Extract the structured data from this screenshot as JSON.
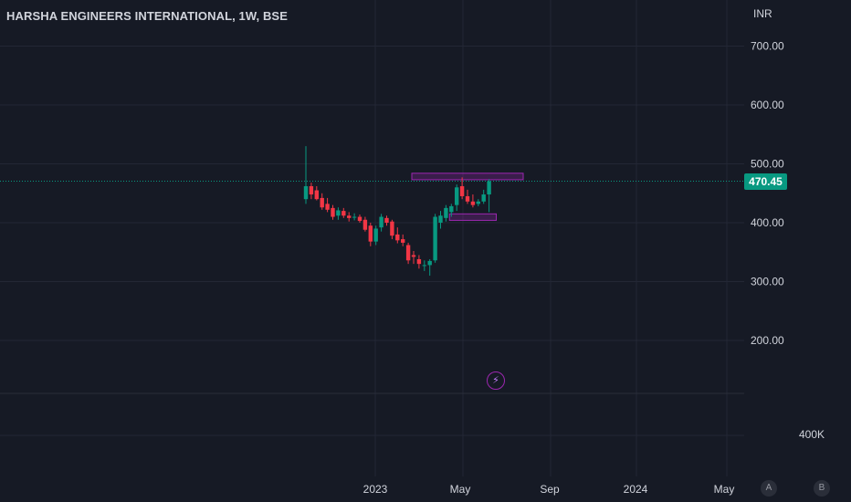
{
  "header": {
    "title": "HARSHA ENGINEERS INTERNATIONAL, 1W, BSE",
    "currency": "INR"
  },
  "price_axis": {
    "ticks": [
      "700.00",
      "600.00",
      "500.00",
      "400.00",
      "300.00",
      "200.00"
    ],
    "last_price_label": "470.45"
  },
  "volume_axis": {
    "label": "400K"
  },
  "time_axis": {
    "ticks": [
      "2023",
      "May",
      "Sep",
      "2024",
      "May"
    ]
  },
  "controls": {
    "auto_label": "A",
    "bold_label": "B"
  },
  "colors": {
    "background": "#161a25",
    "up": "#089981",
    "down": "#f23645",
    "zone": "#9c27b0",
    "grid": "#232735"
  },
  "chart_data": {
    "type": "candlestick",
    "title": "HARSHA ENGINEERS INTERNATIONAL, 1W, BSE",
    "ylabel": "INR",
    "ylim": [
      100,
      760
    ],
    "last_price": 470.45,
    "grid": true,
    "x_ticks": [
      "2023",
      "May",
      "Sep",
      "2024",
      "May"
    ],
    "candles": [
      {
        "o": 440,
        "h": 530,
        "l": 432,
        "c": 462
      },
      {
        "o": 462,
        "h": 468,
        "l": 440,
        "c": 448
      },
      {
        "o": 455,
        "h": 462,
        "l": 438,
        "c": 440
      },
      {
        "o": 442,
        "h": 450,
        "l": 422,
        "c": 426
      },
      {
        "o": 432,
        "h": 442,
        "l": 418,
        "c": 422
      },
      {
        "o": 425,
        "h": 430,
        "l": 405,
        "c": 410
      },
      {
        "o": 412,
        "h": 426,
        "l": 405,
        "c": 421
      },
      {
        "o": 420,
        "h": 425,
        "l": 408,
        "c": 412
      },
      {
        "o": 412,
        "h": 418,
        "l": 402,
        "c": 408
      },
      {
        "o": 410,
        "h": 416,
        "l": 404,
        "c": 410
      },
      {
        "o": 410,
        "h": 414,
        "l": 400,
        "c": 403
      },
      {
        "o": 405,
        "h": 410,
        "l": 385,
        "c": 388
      },
      {
        "o": 395,
        "h": 400,
        "l": 360,
        "c": 368
      },
      {
        "o": 368,
        "h": 395,
        "l": 362,
        "c": 390
      },
      {
        "o": 392,
        "h": 415,
        "l": 385,
        "c": 410
      },
      {
        "o": 408,
        "h": 412,
        "l": 395,
        "c": 400
      },
      {
        "o": 402,
        "h": 405,
        "l": 372,
        "c": 378
      },
      {
        "o": 380,
        "h": 392,
        "l": 365,
        "c": 370
      },
      {
        "o": 372,
        "h": 380,
        "l": 360,
        "c": 366
      },
      {
        "o": 362,
        "h": 366,
        "l": 330,
        "c": 336
      },
      {
        "o": 345,
        "h": 352,
        "l": 330,
        "c": 342
      },
      {
        "o": 338,
        "h": 345,
        "l": 322,
        "c": 330
      },
      {
        "o": 328,
        "h": 336,
        "l": 318,
        "c": 328
      },
      {
        "o": 328,
        "h": 338,
        "l": 310,
        "c": 335
      },
      {
        "o": 336,
        "h": 415,
        "l": 332,
        "c": 410
      },
      {
        "o": 400,
        "h": 420,
        "l": 390,
        "c": 412
      },
      {
        "o": 408,
        "h": 430,
        "l": 402,
        "c": 425
      },
      {
        "o": 418,
        "h": 432,
        "l": 410,
        "c": 428
      },
      {
        "o": 430,
        "h": 465,
        "l": 420,
        "c": 460
      },
      {
        "o": 462,
        "h": 477,
        "l": 440,
        "c": 445
      },
      {
        "o": 445,
        "h": 456,
        "l": 432,
        "c": 436
      },
      {
        "o": 436,
        "h": 448,
        "l": 426,
        "c": 430
      },
      {
        "o": 432,
        "h": 440,
        "l": 428,
        "c": 436
      },
      {
        "o": 436,
        "h": 456,
        "l": 432,
        "c": 448
      },
      {
        "o": 448,
        "h": 474,
        "l": 418,
        "c": 470.45
      }
    ],
    "zones": [
      {
        "name": "resistance-zone",
        "from_candle": 20,
        "to_candle": 40,
        "low": 473,
        "high": 484
      },
      {
        "name": "support-zone",
        "from_candle": 27,
        "to_candle": 35,
        "low": 404,
        "high": 415
      }
    ]
  }
}
